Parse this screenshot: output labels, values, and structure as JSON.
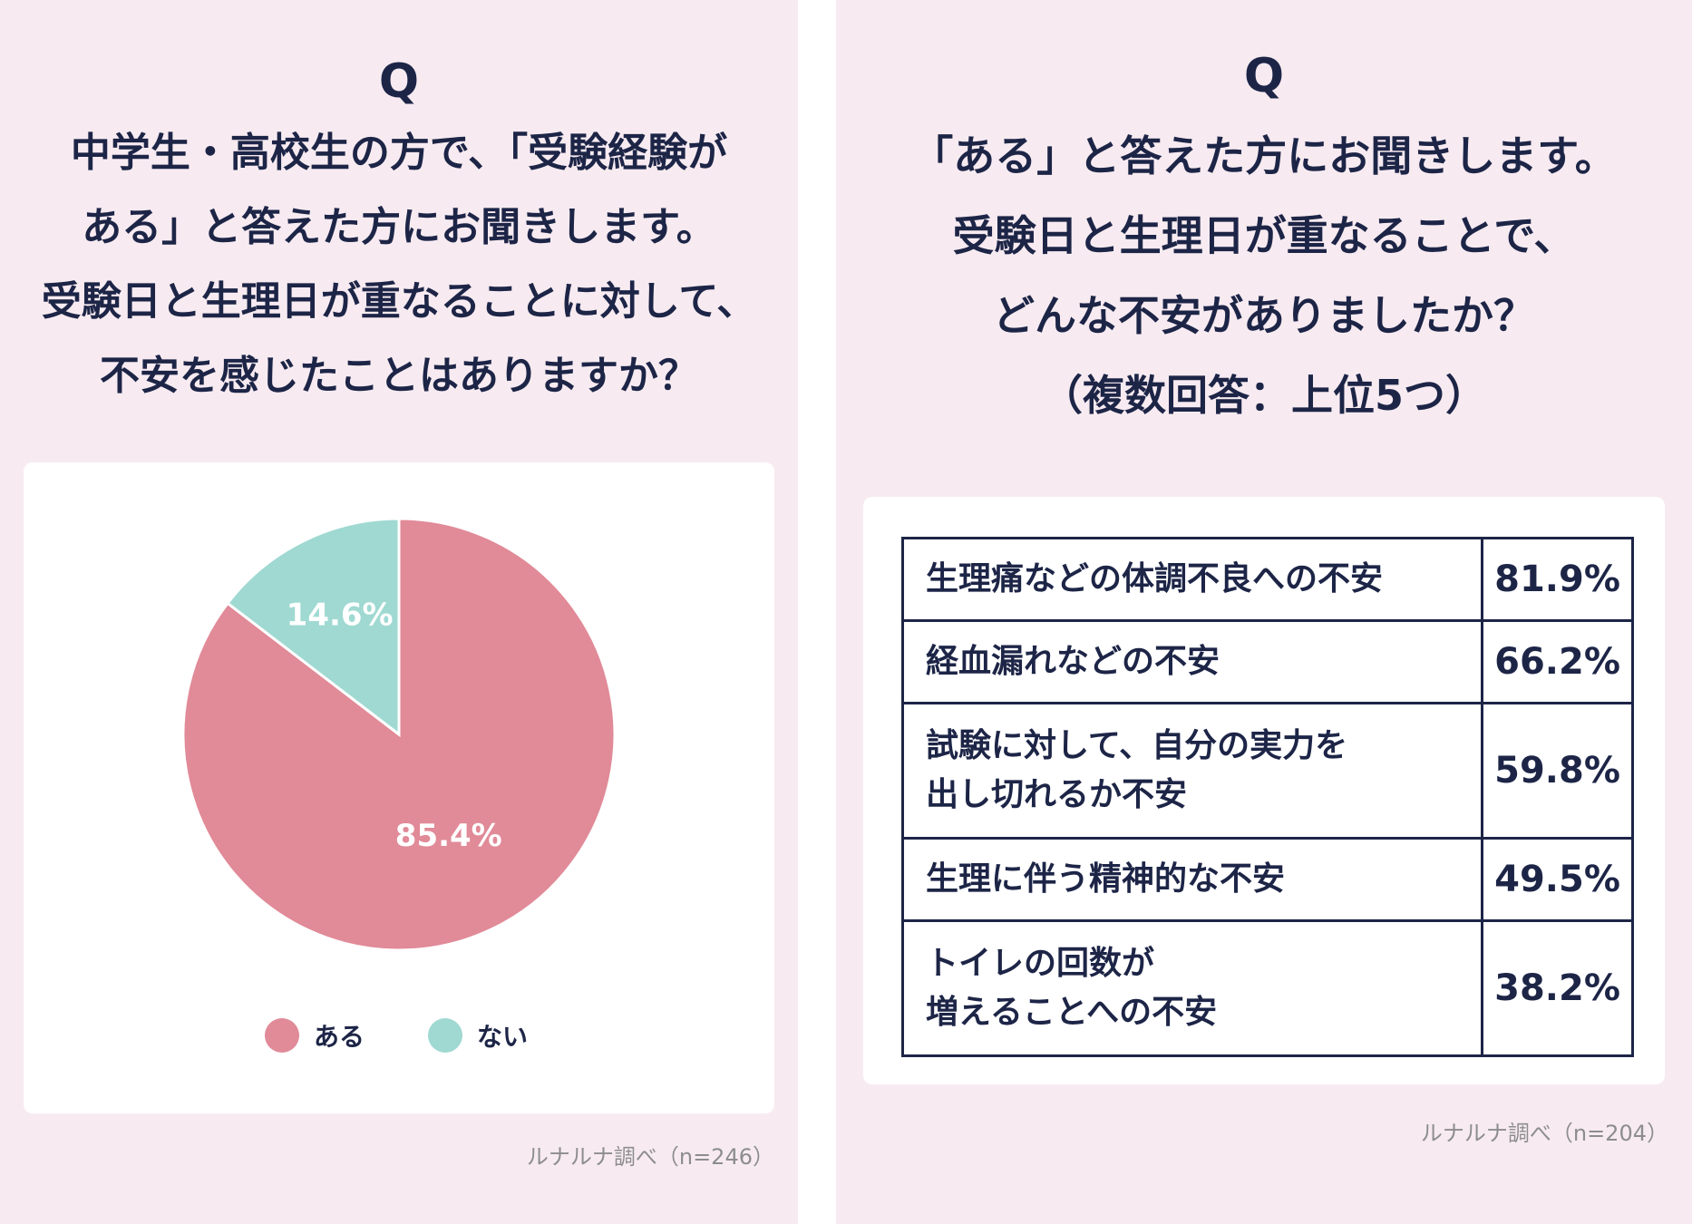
{
  "colors": {
    "background": "#f7ebf1",
    "aru": "#e18a98",
    "nai": "#9fd9d2",
    "text": "#1d2547"
  },
  "left": {
    "q_mark": "Q",
    "question_lines": [
      "中学生・高校生の方で、「受験経験が",
      "ある」と答えた方にお聞きします。",
      "受験日と生理日が重なることに対して、",
      "不安を感じたことはありますか？"
    ],
    "source": "ルナルナ調べ（n=246）"
  },
  "right": {
    "q_mark": "Q",
    "question_lines": [
      "「ある」と答えた方にお聞きします。",
      "受験日と生理日が重なることで、",
      "どんな不安がありましたか？",
      "（複数回答：上位5つ）"
    ],
    "source": "ルナルナ調べ（n=204）"
  },
  "chart_data": [
    {
      "type": "pie",
      "slices": [
        {
          "label": "ある",
          "value": 85.4,
          "display": "85.4%",
          "color": "#e18a98"
        },
        {
          "label": "ない",
          "value": 14.6,
          "display": "14.6%",
          "color": "#9fd9d2"
        }
      ],
      "legend": [
        "ある",
        "ない"
      ],
      "legend_position": "bottom"
    },
    {
      "type": "table",
      "rows": [
        {
          "label_lines": [
            "生理痛などの体調不良への不安"
          ],
          "value": 81.9,
          "display": "81.9%"
        },
        {
          "label_lines": [
            "経血漏れなどの不安"
          ],
          "value": 66.2,
          "display": "66.2%"
        },
        {
          "label_lines": [
            "試験に対して、自分の実力を",
            "出し切れるか不安"
          ],
          "value": 59.8,
          "display": "59.8%"
        },
        {
          "label_lines": [
            "生理に伴う精神的な不安"
          ],
          "value": 49.5,
          "display": "49.5%"
        },
        {
          "label_lines": [
            "トイレの回数が",
            "増えることへの不安"
          ],
          "value": 38.2,
          "display": "38.2%"
        }
      ]
    }
  ]
}
